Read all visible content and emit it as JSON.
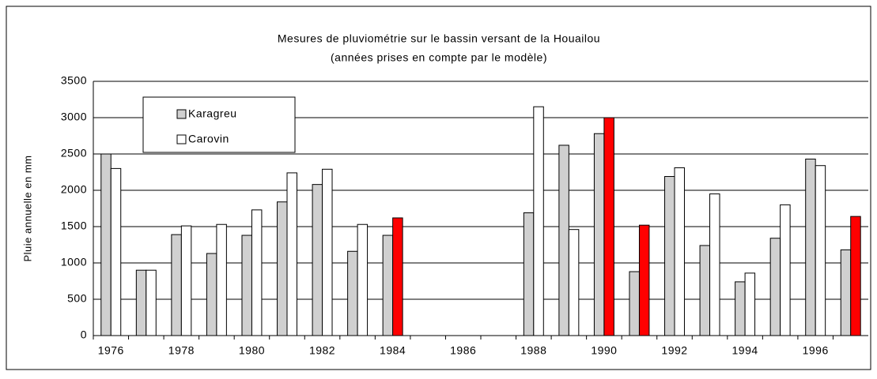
{
  "chart_data": {
    "type": "bar",
    "title": "Mesures de pluviométrie sur le bassin versant de la Houailou",
    "subtitle": "(années prises en compte par le modèle)",
    "y_label": "Pluie annuelle en mm",
    "categories": [
      "1976",
      null,
      "1978",
      null,
      "1980",
      null,
      "1982",
      null,
      "1984",
      null,
      "1986",
      null,
      "1988",
      null,
      "1990",
      null,
      "1992",
      null,
      "1994",
      null,
      "1996",
      null
    ],
    "series": [
      {
        "name": "Karagreu",
        "color": "#d0d0d0",
        "values": [
          2500,
          900,
          1390,
          1130,
          1380,
          1840,
          2080,
          1160,
          1380,
          null,
          null,
          null,
          1690,
          2620,
          2780,
          880,
          2190,
          1240,
          740,
          1340,
          2430,
          1180
        ]
      },
      {
        "name": "Carovin",
        "color": "#ffffff",
        "colors": [
          "#ffffff",
          "#ffffff",
          "#ffffff",
          "#ffffff",
          "#ffffff",
          "#ffffff",
          "#ffffff",
          "#ffffff",
          "#ff0000",
          "#ffffff",
          "#ffffff",
          "#ffffff",
          "#ffffff",
          "#ffffff",
          "#ff0000",
          "#ff0000",
          "#ffffff",
          "#ffffff",
          "#ffffff",
          "#ffffff",
          "#ffffff",
          "#ff0000"
        ],
        "values": [
          2300,
          900,
          1510,
          1530,
          1730,
          2240,
          2290,
          1530,
          1620,
          null,
          null,
          null,
          3150,
          1460,
          3000,
          1520,
          2310,
          1950,
          860,
          1800,
          2340,
          1640
        ]
      }
    ],
    "ylim": [
      0,
      3500
    ],
    "yticks": [
      0,
      500,
      1000,
      1500,
      2000,
      2500,
      3000,
      3500
    ],
    "grid": true
  }
}
